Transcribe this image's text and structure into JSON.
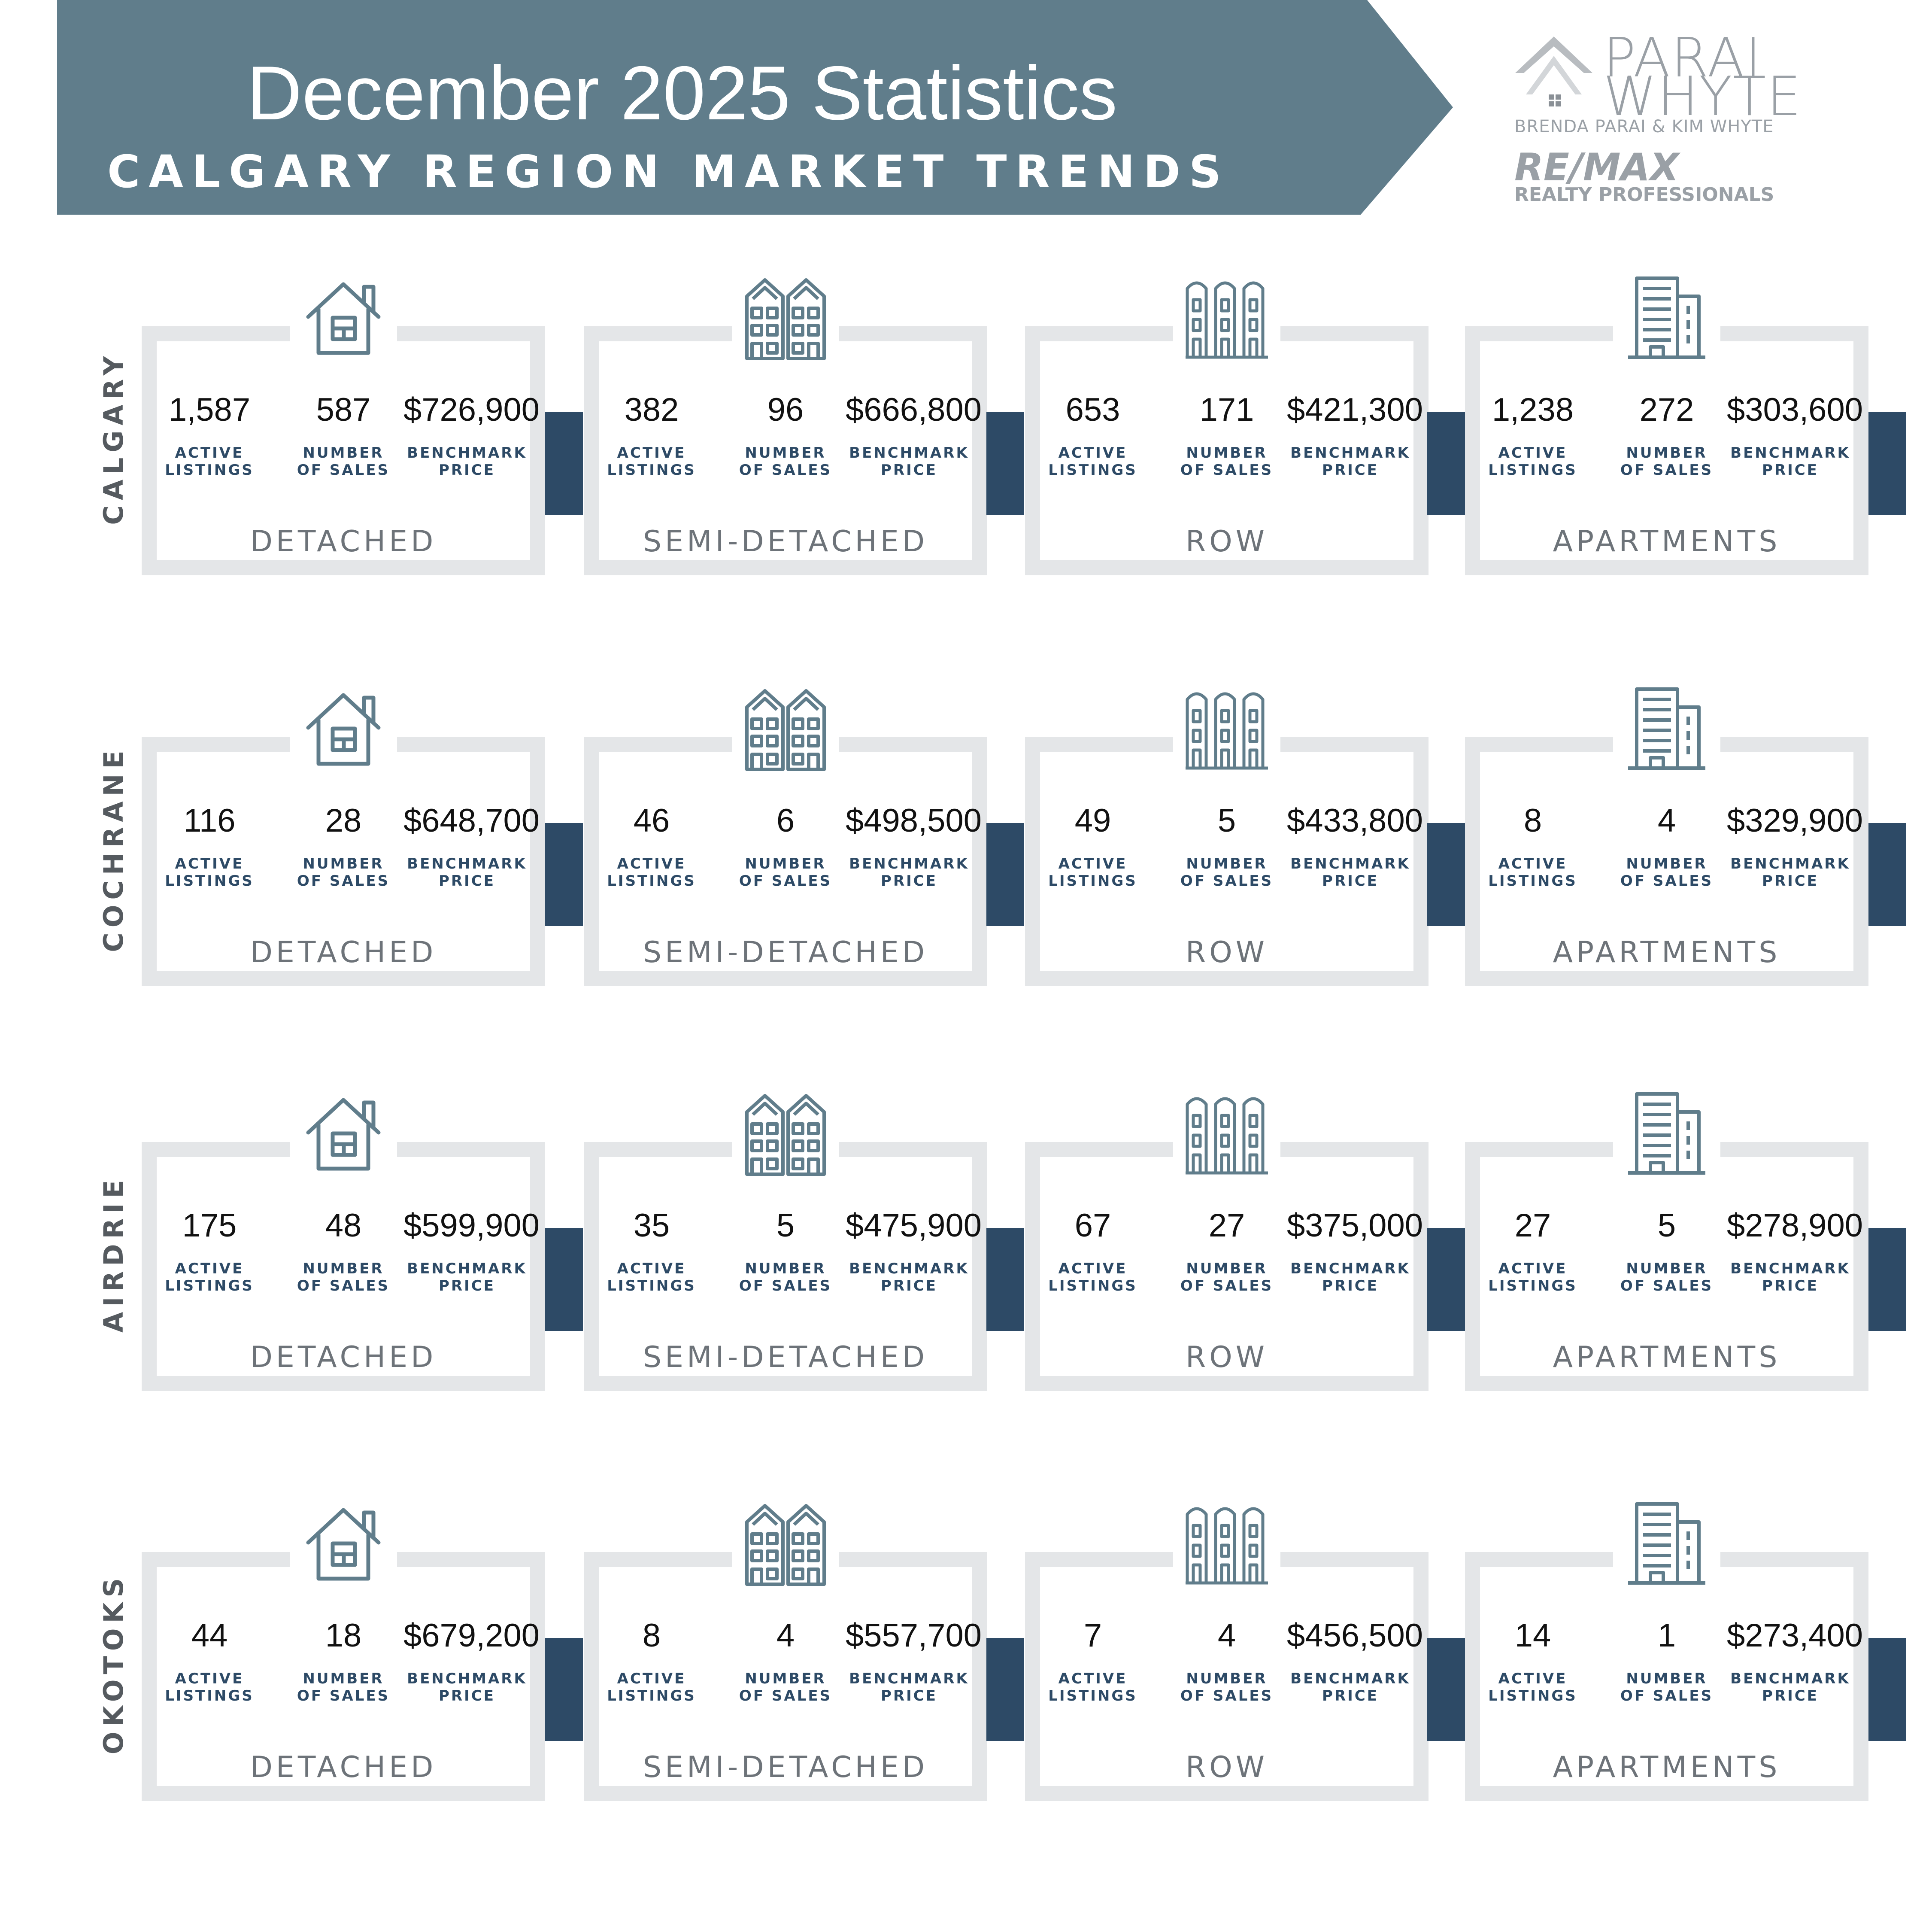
{
  "header": {
    "title": "December 2025 Statistics",
    "subtitle": "CALGARY REGION MARKET TRENDS",
    "banner_color": "#607d8b"
  },
  "logo": {
    "name_line1": "PARAI",
    "name_line2": "WHYTE",
    "agents": "BRENDA PARAI & KIM WHYTE",
    "brokerage": "RE/MAX",
    "brokerage_sub": "REALTY PROFESSIONALS"
  },
  "labels": {
    "active": "ACTIVE\nLISTINGS",
    "sales": "NUMBER\nOF SALES",
    "price": "BENCHMARK\nPRICE"
  },
  "colors": {
    "accent": "#2d4a66",
    "card_frame": "#e4e6e8",
    "icon": "#607d8b"
  },
  "regions": [
    {
      "name": "CALGARY",
      "cards": [
        {
          "type": "DETACHED",
          "icon": "house-icon",
          "active": "1,587",
          "sales": "587",
          "price": "$726,900"
        },
        {
          "type": "SEMI-DETACHED",
          "icon": "semi-detached-icon",
          "active": "382",
          "sales": "96",
          "price": "$666,800"
        },
        {
          "type": "ROW",
          "icon": "row-house-icon",
          "active": "653",
          "sales": "171",
          "price": "$421,300"
        },
        {
          "type": "APARTMENTS",
          "icon": "apartment-building-icon",
          "active": "1,238",
          "sales": "272",
          "price": "$303,600"
        }
      ]
    },
    {
      "name": "COCHRANE",
      "cards": [
        {
          "type": "DETACHED",
          "icon": "house-icon",
          "active": "116",
          "sales": "28",
          "price": "$648,700"
        },
        {
          "type": "SEMI-DETACHED",
          "icon": "semi-detached-icon",
          "active": "46",
          "sales": "6",
          "price": "$498,500"
        },
        {
          "type": "ROW",
          "icon": "row-house-icon",
          "active": "49",
          "sales": "5",
          "price": "$433,800"
        },
        {
          "type": "APARTMENTS",
          "icon": "apartment-building-icon",
          "active": "8",
          "sales": "4",
          "price": "$329,900"
        }
      ]
    },
    {
      "name": "AIRDRIE",
      "cards": [
        {
          "type": "DETACHED",
          "icon": "house-icon",
          "active": "175",
          "sales": "48",
          "price": "$599,900"
        },
        {
          "type": "SEMI-DETACHED",
          "icon": "semi-detached-icon",
          "active": "35",
          "sales": "5",
          "price": "$475,900"
        },
        {
          "type": "ROW",
          "icon": "row-house-icon",
          "active": "67",
          "sales": "27",
          "price": "$375,000"
        },
        {
          "type": "APARTMENTS",
          "icon": "apartment-building-icon",
          "active": "27",
          "sales": "5",
          "price": "$278,900"
        }
      ]
    },
    {
      "name": "OKOTOKS",
      "cards": [
        {
          "type": "DETACHED",
          "icon": "house-icon",
          "active": "44",
          "sales": "18",
          "price": "$679,200"
        },
        {
          "type": "SEMI-DETACHED",
          "icon": "semi-detached-icon",
          "active": "8",
          "sales": "4",
          "price": "$557,700"
        },
        {
          "type": "ROW",
          "icon": "row-house-icon",
          "active": "7",
          "sales": "4",
          "price": "$456,500"
        },
        {
          "type": "APARTMENTS",
          "icon": "apartment-building-icon",
          "active": "14",
          "sales": "1",
          "price": "$273,400"
        }
      ]
    }
  ]
}
